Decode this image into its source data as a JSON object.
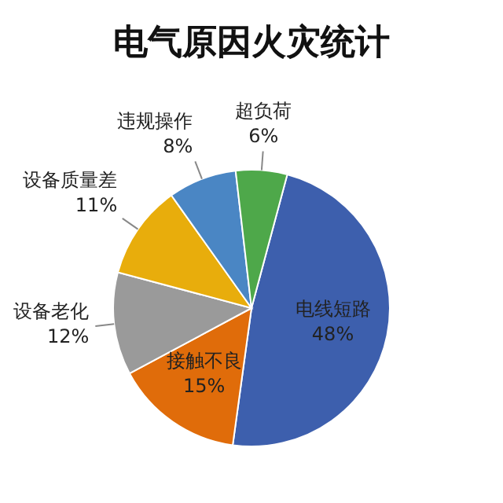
{
  "chart_data": {
    "type": "pie",
    "title": "电气原因火灾统计",
    "categories": [
      "电线短路",
      "接触不良",
      "设备老化",
      "设备质量差",
      "违规操作",
      "超负荷"
    ],
    "values": [
      48,
      15,
      12,
      11,
      8,
      6
    ],
    "colors": [
      "#3d5fad",
      "#e06c0a",
      "#9a9a9a",
      "#e8ad0c",
      "#4a86c4",
      "#4ea84a"
    ],
    "value_labels": [
      "48%",
      "15%",
      "12%",
      "11%",
      "8%",
      "6%"
    ]
  }
}
